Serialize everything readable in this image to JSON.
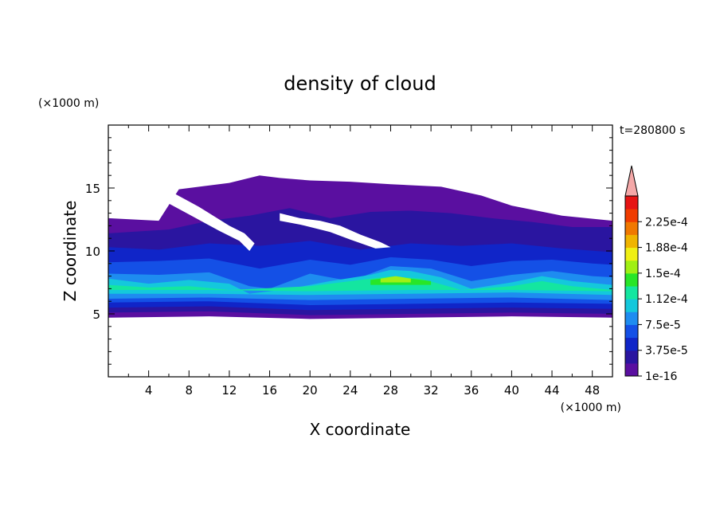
{
  "chart_data": {
    "type": "heatmap",
    "title": "density of cloud",
    "time_label": "t=280800 s",
    "xlabel": "X coordinate",
    "ylabel": "Z coordinate",
    "x_unit": "(×1000 m)",
    "y_unit": "(×1000 m)",
    "xlim": [
      0,
      50
    ],
    "ylim": [
      0,
      20
    ],
    "x_ticks": [
      4,
      8,
      12,
      16,
      20,
      24,
      28,
      32,
      36,
      40,
      44,
      48
    ],
    "y_ticks": [
      5,
      10,
      15
    ],
    "colorbar": {
      "tick_labels": [
        "2.25e-4",
        "1.88e-4",
        "1.5e-4",
        "1.12e-4",
        "7.5e-5",
        "3.75e-5",
        "1e-16"
      ],
      "tick_values": [
        0.000225,
        0.000188,
        0.00015,
        0.000112,
        7.5e-05,
        3.75e-05,
        1e-16
      ],
      "colors": [
        "#5a0fa0",
        "#2a15a0",
        "#1025c8",
        "#1450e6",
        "#1e8cf0",
        "#14c8dc",
        "#14e6a0",
        "#28e628",
        "#a0f014",
        "#f0f014",
        "#f0b400",
        "#f07800",
        "#f03c00",
        "#e61414"
      ],
      "extend_color": "#f4a8a8"
    },
    "layers": [
      {
        "level": 0,
        "color": "#5a0fa0",
        "upper": [
          [
            0,
            12.6
          ],
          [
            5,
            12.4
          ],
          [
            7,
            14.9
          ],
          [
            12,
            15.4
          ],
          [
            15,
            16.0
          ],
          [
            17,
            15.8
          ],
          [
            20,
            15.6
          ],
          [
            24,
            15.5
          ],
          [
            28,
            15.3
          ],
          [
            33,
            15.1
          ],
          [
            37,
            14.4
          ],
          [
            40,
            13.6
          ],
          [
            45,
            12.8
          ],
          [
            50,
            12.4
          ]
        ],
        "lower": [
          [
            0,
            4.7
          ],
          [
            10,
            4.8
          ],
          [
            20,
            4.6
          ],
          [
            30,
            4.7
          ],
          [
            40,
            4.8
          ],
          [
            50,
            4.7
          ]
        ]
      },
      {
        "level": 1,
        "color": "#2a15a0",
        "upper": [
          [
            0,
            11.4
          ],
          [
            6,
            11.7
          ],
          [
            10,
            12.4
          ],
          [
            14,
            12.8
          ],
          [
            18,
            13.4
          ],
          [
            22,
            12.6
          ],
          [
            26,
            13.1
          ],
          [
            30,
            13.2
          ],
          [
            34,
            13.0
          ],
          [
            38,
            12.6
          ],
          [
            42,
            12.3
          ],
          [
            46,
            11.9
          ],
          [
            50,
            11.9
          ]
        ],
        "lower": [
          [
            0,
            5.1
          ],
          [
            10,
            5.2
          ],
          [
            20,
            4.9
          ],
          [
            30,
            5.0
          ],
          [
            40,
            5.1
          ],
          [
            50,
            5.0
          ]
        ]
      },
      {
        "level": 2,
        "color": "#1025c8",
        "upper": [
          [
            0,
            10.3
          ],
          [
            5,
            10.1
          ],
          [
            10,
            10.6
          ],
          [
            15,
            10.4
          ],
          [
            20,
            10.8
          ],
          [
            25,
            10.1
          ],
          [
            30,
            10.6
          ],
          [
            35,
            10.4
          ],
          [
            40,
            10.6
          ],
          [
            45,
            10.2
          ],
          [
            50,
            9.9
          ]
        ],
        "lower": [
          [
            0,
            5.5
          ],
          [
            10,
            5.6
          ],
          [
            20,
            5.3
          ],
          [
            30,
            5.4
          ],
          [
            40,
            5.5
          ],
          [
            50,
            5.4
          ]
        ]
      },
      {
        "level": 3,
        "color": "#1450e6",
        "upper": [
          [
            0,
            9.1
          ],
          [
            5,
            9.2
          ],
          [
            10,
            9.4
          ],
          [
            15,
            8.6
          ],
          [
            20,
            9.3
          ],
          [
            24,
            8.9
          ],
          [
            28,
            9.5
          ],
          [
            32,
            9.3
          ],
          [
            36,
            8.8
          ],
          [
            40,
            9.2
          ],
          [
            44,
            9.3
          ],
          [
            48,
            9.0
          ],
          [
            50,
            8.9
          ]
        ],
        "lower": [
          [
            0,
            5.9
          ],
          [
            10,
            6.0
          ],
          [
            20,
            5.7
          ],
          [
            30,
            5.8
          ],
          [
            40,
            5.9
          ],
          [
            50,
            5.8
          ]
        ]
      },
      {
        "level": 4,
        "color": "#1e8cf0",
        "upper": [
          [
            0,
            8.2
          ],
          [
            5,
            8.1
          ],
          [
            10,
            8.3
          ],
          [
            14,
            7.2
          ],
          [
            16,
            7.0
          ],
          [
            20,
            8.2
          ],
          [
            24,
            7.6
          ],
          [
            28,
            8.8
          ],
          [
            32,
            8.6
          ],
          [
            36,
            7.6
          ],
          [
            40,
            8.1
          ],
          [
            44,
            8.4
          ],
          [
            48,
            8.0
          ],
          [
            50,
            7.9
          ]
        ],
        "lower": [
          [
            0,
            6.2
          ],
          [
            10,
            6.3
          ],
          [
            20,
            6.1
          ],
          [
            30,
            6.2
          ],
          [
            40,
            6.3
          ],
          [
            50,
            6.1
          ]
        ]
      },
      {
        "level": 5,
        "color": "#14c8dc",
        "upper": [
          [
            0,
            7.8
          ],
          [
            4,
            7.4
          ],
          [
            8,
            7.7
          ],
          [
            12,
            7.4
          ],
          [
            14,
            6.6
          ],
          [
            18,
            7.0
          ],
          [
            22,
            7.6
          ],
          [
            26,
            8.1
          ],
          [
            28,
            8.5
          ],
          [
            30,
            8.4
          ],
          [
            33,
            7.9
          ],
          [
            36,
            7.0
          ],
          [
            40,
            7.5
          ],
          [
            43,
            8.0
          ],
          [
            46,
            7.6
          ],
          [
            50,
            7.3
          ]
        ],
        "lower": [
          [
            0,
            6.6
          ],
          [
            10,
            6.6
          ],
          [
            20,
            6.5
          ],
          [
            30,
            6.6
          ],
          [
            40,
            6.7
          ],
          [
            50,
            6.5
          ]
        ]
      },
      {
        "level": 6,
        "color": "#14e6a0",
        "upper": [
          [
            0,
            7.3
          ],
          [
            4,
            7.1
          ],
          [
            8,
            7.2
          ],
          [
            12,
            6.9
          ],
          [
            20,
            7.2
          ],
          [
            25,
            7.7
          ],
          [
            28,
            8.0
          ],
          [
            31,
            7.8
          ],
          [
            35,
            6.9
          ],
          [
            40,
            7.2
          ],
          [
            43,
            7.6
          ],
          [
            46,
            7.2
          ],
          [
            50,
            6.9
          ]
        ],
        "lower": [
          [
            0,
            6.9
          ],
          [
            10,
            6.9
          ],
          [
            20,
            6.8
          ],
          [
            30,
            6.9
          ],
          [
            40,
            6.9
          ],
          [
            50,
            6.8
          ]
        ]
      },
      {
        "level": 7,
        "color": "#28e628",
        "upper": [
          [
            26,
            7.7
          ],
          [
            28,
            7.9
          ],
          [
            30,
            7.8
          ],
          [
            32,
            7.6
          ]
        ],
        "lower": [
          [
            26,
            7.3
          ],
          [
            28,
            7.3
          ],
          [
            30,
            7.3
          ],
          [
            32,
            7.3
          ]
        ]
      },
      {
        "level": 8,
        "color": "#a0f014",
        "upper": [
          [
            27,
            7.8
          ],
          [
            28.5,
            8.0
          ],
          [
            30,
            7.8
          ]
        ],
        "lower": [
          [
            27,
            7.5
          ],
          [
            28.5,
            7.5
          ],
          [
            30,
            7.5
          ]
        ]
      }
    ],
    "clear_regions": [
      {
        "name": "gap-upper-left",
        "points": [
          [
            2.5,
            15.1
          ],
          [
            6,
            14.8
          ],
          [
            9,
            13.5
          ],
          [
            12,
            12.0
          ],
          [
            13.5,
            11.4
          ],
          [
            14.5,
            10.6
          ],
          [
            14,
            10.0
          ],
          [
            13,
            10.8
          ],
          [
            11,
            11.6
          ],
          [
            8,
            12.9
          ],
          [
            5,
            14.2
          ]
        ]
      },
      {
        "name": "gap-center",
        "points": [
          [
            17,
            13.0
          ],
          [
            19,
            12.6
          ],
          [
            21,
            12.4
          ],
          [
            23,
            12.0
          ],
          [
            25,
            11.3
          ],
          [
            27,
            10.7
          ],
          [
            28,
            10.3
          ],
          [
            26.5,
            10.2
          ],
          [
            24,
            10.9
          ],
          [
            22,
            11.5
          ],
          [
            19,
            12.1
          ],
          [
            17,
            12.4
          ]
        ]
      }
    ]
  }
}
